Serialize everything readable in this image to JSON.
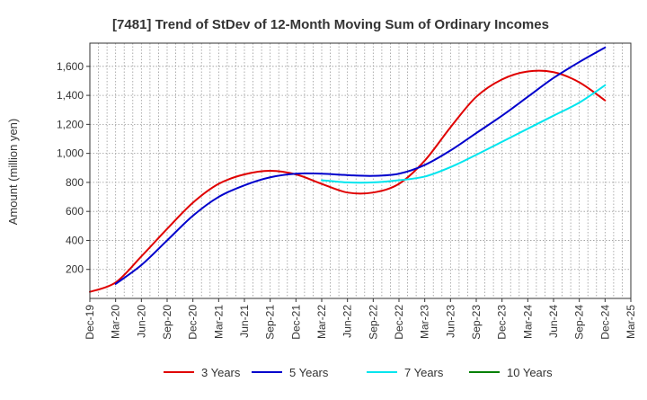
{
  "chart_data": {
    "type": "line",
    "title": "[7481]  Trend of StDev of 12-Month Moving Sum of Ordinary Incomes",
    "xlabel": "",
    "ylabel": "Amount (million yen)",
    "categories": [
      "Dec-19",
      "Mar-20",
      "Jun-20",
      "Sep-20",
      "Dec-20",
      "Mar-21",
      "Jun-21",
      "Sep-21",
      "Dec-21",
      "Mar-22",
      "Jun-22",
      "Sep-22",
      "Dec-22",
      "Mar-23",
      "Jun-23",
      "Sep-23",
      "Dec-23",
      "Mar-24",
      "Jun-24",
      "Sep-24",
      "Dec-24",
      "Mar-25"
    ],
    "yticks": [
      200,
      400,
      600,
      800,
      1000,
      1200,
      1400,
      1600
    ],
    "ytick_labels": [
      "200",
      "400",
      "600",
      "800",
      "1,000",
      "1,200",
      "1,400",
      "1,600"
    ],
    "ylim": [
      0,
      1760
    ],
    "grid": true,
    "legend_position": "bottom",
    "series": [
      {
        "name": "3 Years",
        "color": "#e00000",
        "values": [
          45,
          110,
          290,
          480,
          660,
          790,
          855,
          880,
          855,
          790,
          730,
          730,
          790,
          950,
          1180,
          1390,
          1510,
          1565,
          1560,
          1490,
          1365,
          null
        ]
      },
      {
        "name": "5 Years",
        "color": "#0000cc",
        "values": [
          null,
          100,
          230,
          400,
          570,
          700,
          780,
          835,
          860,
          860,
          850,
          845,
          860,
          920,
          1020,
          1140,
          1260,
          1390,
          1520,
          1630,
          1730,
          null
        ]
      },
      {
        "name": "7 Years",
        "color": "#00e5ee",
        "values": [
          null,
          null,
          null,
          null,
          null,
          null,
          null,
          null,
          null,
          815,
          800,
          800,
          815,
          840,
          905,
          990,
          1080,
          1170,
          1260,
          1350,
          1470,
          null
        ]
      },
      {
        "name": "10 Years",
        "color": "#008000",
        "values": [
          null,
          null,
          null,
          null,
          null,
          null,
          null,
          null,
          null,
          null,
          null,
          null,
          null,
          null,
          null,
          null,
          null,
          null,
          null,
          null,
          null,
          null
        ]
      }
    ]
  }
}
